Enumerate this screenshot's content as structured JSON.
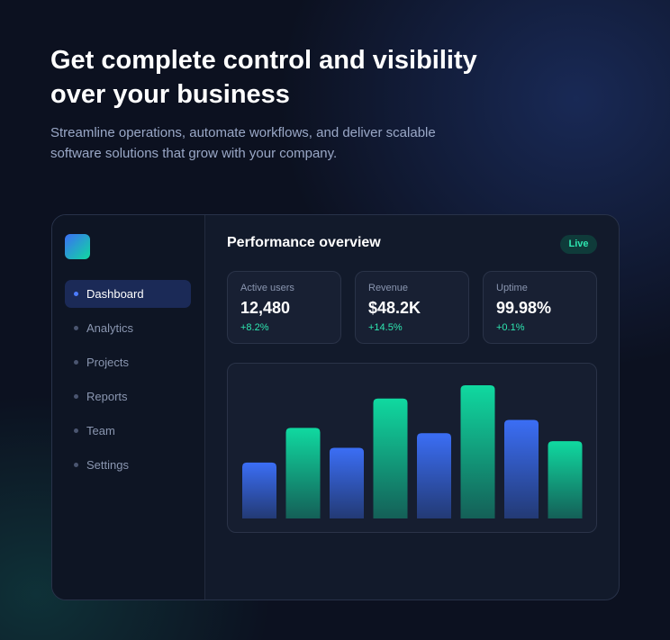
{
  "header": {
    "title": "Get complete control and visibility over your business",
    "subtitle": "Streamline operations, automate workflows, and deliver scalable software solutions that grow with your company."
  },
  "sidebar": {
    "nav": [
      "Dashboard",
      "Analytics",
      "Projects",
      "Reports",
      "Team",
      "Settings"
    ],
    "active": 0
  },
  "panel": {
    "title": "Performance overview",
    "badge": "Live",
    "stats": [
      {
        "label": "Active users",
        "value": "12,480",
        "change": "+8.2%"
      },
      {
        "label": "Revenue",
        "value": "$48.2K",
        "change": "+14.5%"
      },
      {
        "label": "Uptime",
        "value": "99.98%",
        "change": "+0.1%"
      }
    ]
  },
  "chart_data": {
    "type": "bar",
    "values": [
      42,
      68,
      53,
      90,
      64,
      100,
      74,
      58
    ],
    "colors": [
      "#3b6ef5",
      "#10d9a0",
      "#3b6ef5",
      "#10d9a0",
      "#3b6ef5",
      "#10d9a0",
      "#3b6ef5",
      "#10d9a0"
    ],
    "ylim": [
      0,
      100
    ]
  }
}
